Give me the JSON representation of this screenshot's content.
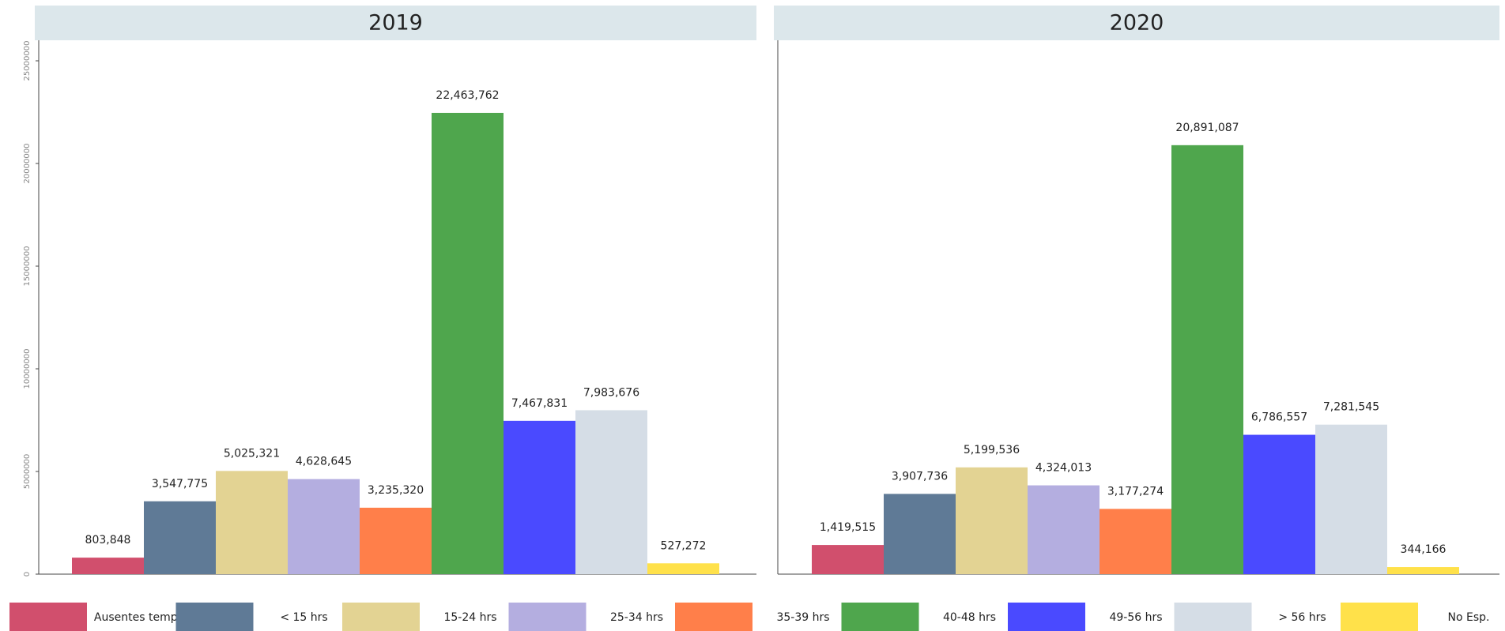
{
  "chart_data": [
    {
      "type": "bar",
      "title": "2019",
      "categories": [
        "Ausentes temp.",
        "< 15 hrs",
        "15-24 hrs",
        "25-34 hrs",
        "35-39 hrs",
        "40-48 hrs",
        "49-56 hrs",
        "> 56 hrs",
        "No Esp."
      ],
      "values": [
        803848,
        3547775,
        5025321,
        4628645,
        3235320,
        22463762,
        7467831,
        7983676,
        527272
      ],
      "value_labels": [
        "803,848",
        "3,547,775",
        "5,025,321",
        "4,628,645",
        "3,235,320",
        "22,463,762",
        "7,467,831",
        "7,983,676",
        "527,272"
      ],
      "colors": [
        "#d14f6d",
        "#5f7a96",
        "#e3d393",
        "#b4aee0",
        "#ff7f4a",
        "#4fa64d",
        "#4a4aff",
        "#d5dde6",
        "#ffe14a"
      ],
      "ylim": [
        0,
        26000000
      ],
      "yticks": [
        0,
        5000000,
        10000000,
        15000000,
        20000000,
        25000000
      ]
    },
    {
      "type": "bar",
      "title": "2020",
      "categories": [
        "Ausentes temp.",
        "< 15 hrs",
        "15-24 hrs",
        "25-34 hrs",
        "35-39 hrs",
        "40-48 hrs",
        "49-56 hrs",
        "> 56 hrs",
        "No Esp."
      ],
      "values": [
        1419515,
        3907736,
        5199536,
        4324013,
        3177274,
        20891087,
        6786557,
        7281545,
        344166
      ],
      "value_labels": [
        "1,419,515",
        "3,907,736",
        "5,199,536",
        "4,324,013",
        "3,177,274",
        "20,891,087",
        "6,786,557",
        "7,281,545",
        "344,166"
      ],
      "colors": [
        "#d14f6d",
        "#5f7a96",
        "#e3d393",
        "#b4aee0",
        "#ff7f4a",
        "#4fa64d",
        "#4a4aff",
        "#d5dde6",
        "#ffe14a"
      ],
      "ylim": [
        0,
        26000000
      ]
    }
  ]
}
